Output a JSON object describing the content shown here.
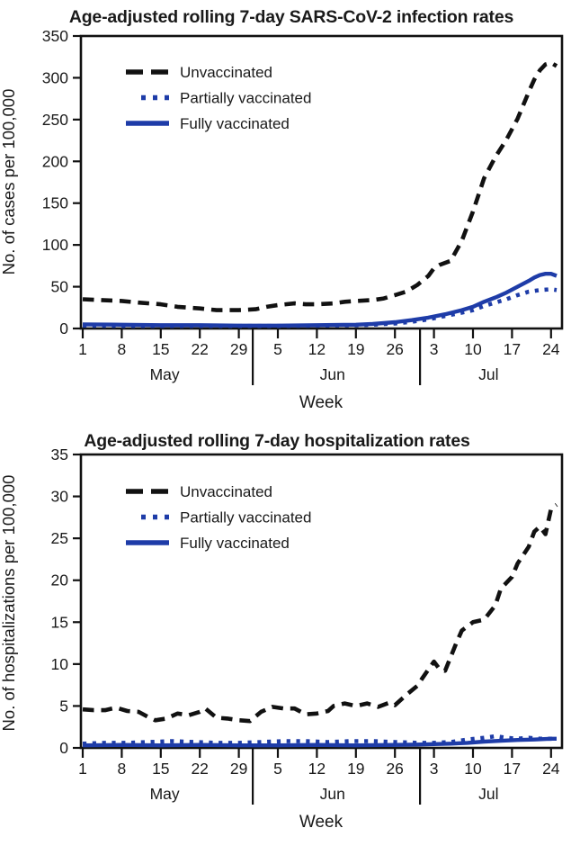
{
  "colors": {
    "background": "#ffffff",
    "axis": "#111111",
    "unvaccinated": "#111111",
    "vaccinated_blue": "#1e3ca8",
    "text": "#1a1a1a"
  },
  "chart_data": [
    {
      "type": "line",
      "title": "Age-adjusted rolling 7-day SARS-CoV-2 infection rates",
      "ylabel": "No. of cases per 100,000",
      "xlabel": "Week",
      "ylim": [
        0,
        350
      ],
      "yticks": [
        0,
        50,
        100,
        150,
        200,
        250,
        300,
        350
      ],
      "xticks": [
        {
          "day": 0,
          "label": "1"
        },
        {
          "day": 7,
          "label": "8"
        },
        {
          "day": 14,
          "label": "15"
        },
        {
          "day": 21,
          "label": "22"
        },
        {
          "day": 28,
          "label": "29"
        },
        {
          "day": 35,
          "label": "5"
        },
        {
          "day": 42,
          "label": "12"
        },
        {
          "day": 49,
          "label": "19"
        },
        {
          "day": 56,
          "label": "26"
        },
        {
          "day": 63,
          "label": "3"
        },
        {
          "day": 70,
          "label": "10"
        },
        {
          "day": 77,
          "label": "17"
        },
        {
          "day": 84,
          "label": "24"
        }
      ],
      "months": [
        {
          "label": "May",
          "day": 14.7
        },
        {
          "label": "Jun",
          "day": 44.8
        },
        {
          "label": "Jul",
          "day": 72.8
        }
      ],
      "month_dividers_day": [
        30.5,
        60.5
      ],
      "grid": false,
      "legend_position": "upper-left-inside",
      "series": [
        {
          "name": "Unvaccinated",
          "color": "#111111",
          "line": "dashed",
          "points": [
            [
              0,
              35
            ],
            [
              3,
              34
            ],
            [
              7,
              33
            ],
            [
              10,
              31
            ],
            [
              14,
              29
            ],
            [
              17,
              26
            ],
            [
              21,
              24
            ],
            [
              24,
              22
            ],
            [
              28,
              22
            ],
            [
              31,
              23
            ],
            [
              33,
              26
            ],
            [
              35,
              28
            ],
            [
              38,
              30
            ],
            [
              40,
              29
            ],
            [
              42,
              29
            ],
            [
              45,
              30
            ],
            [
              47,
              32
            ],
            [
              49,
              33
            ],
            [
              52,
              34
            ],
            [
              54,
              36
            ],
            [
              56,
              40
            ],
            [
              58,
              44
            ],
            [
              60,
              52
            ],
            [
              62,
              63
            ],
            [
              63,
              72
            ],
            [
              64,
              76
            ],
            [
              66,
              81
            ],
            [
              68,
              105
            ],
            [
              70,
              140
            ],
            [
              72,
              180
            ],
            [
              74,
              205
            ],
            [
              76,
              226
            ],
            [
              78,
              251
            ],
            [
              80,
              283
            ],
            [
              81,
              298
            ],
            [
              82,
              309
            ],
            [
              83,
              316
            ],
            [
              84,
              318
            ],
            [
              85,
              314
            ]
          ]
        },
        {
          "name": "Partially vaccinated",
          "color": "#1e3ca8",
          "line": "dotted",
          "points": [
            [
              0,
              3.5
            ],
            [
              7,
              3
            ],
            [
              14,
              3
            ],
            [
              21,
              3
            ],
            [
              28,
              3
            ],
            [
              35,
              3
            ],
            [
              42,
              3.5
            ],
            [
              49,
              4
            ],
            [
              52,
              4.5
            ],
            [
              56,
              6
            ],
            [
              59,
              8
            ],
            [
              62,
              11
            ],
            [
              65,
              15
            ],
            [
              68,
              19
            ],
            [
              70,
              22
            ],
            [
              72,
              27
            ],
            [
              74,
              31
            ],
            [
              76,
              35
            ],
            [
              78,
              40
            ],
            [
              80,
              44
            ],
            [
              82,
              46
            ],
            [
              84,
              47
            ],
            [
              85,
              46
            ]
          ]
        },
        {
          "name": "Fully vaccinated",
          "color": "#1e3ca8",
          "line": "solid",
          "points": [
            [
              0,
              5
            ],
            [
              7,
              4.5
            ],
            [
              14,
              4
            ],
            [
              21,
              4
            ],
            [
              28,
              3.5
            ],
            [
              35,
              3.5
            ],
            [
              42,
              4
            ],
            [
              49,
              4.5
            ],
            [
              52,
              5.5
            ],
            [
              56,
              7.5
            ],
            [
              59,
              10
            ],
            [
              62,
              13
            ],
            [
              65,
              17
            ],
            [
              68,
              22
            ],
            [
              70,
              26
            ],
            [
              72,
              32
            ],
            [
              74,
              37
            ],
            [
              76,
              43
            ],
            [
              78,
              50
            ],
            [
              80,
              57
            ],
            [
              81,
              61
            ],
            [
              82,
              64
            ],
            [
              83,
              65.5
            ],
            [
              84,
              65.5
            ],
            [
              85,
              63
            ]
          ]
        }
      ]
    },
    {
      "type": "line",
      "title": "Age-adjusted rolling 7-day hospitalization rates",
      "ylabel": "No. of hospitalizations per 100,000",
      "xlabel": "Week",
      "ylim": [
        0,
        35
      ],
      "yticks": [
        0,
        5,
        10,
        15,
        20,
        25,
        30,
        35
      ],
      "xticks": [
        {
          "day": 0,
          "label": "1"
        },
        {
          "day": 7,
          "label": "8"
        },
        {
          "day": 14,
          "label": "15"
        },
        {
          "day": 21,
          "label": "22"
        },
        {
          "day": 28,
          "label": "29"
        },
        {
          "day": 35,
          "label": "5"
        },
        {
          "day": 42,
          "label": "12"
        },
        {
          "day": 49,
          "label": "19"
        },
        {
          "day": 56,
          "label": "26"
        },
        {
          "day": 63,
          "label": "3"
        },
        {
          "day": 70,
          "label": "10"
        },
        {
          "day": 77,
          "label": "17"
        },
        {
          "day": 84,
          "label": "24"
        }
      ],
      "months": [
        {
          "label": "May",
          "day": 14.7
        },
        {
          "label": "Jun",
          "day": 44.8
        },
        {
          "label": "Jul",
          "day": 72.8
        }
      ],
      "month_dividers_day": [
        30.5,
        60.5
      ],
      "grid": false,
      "legend_position": "upper-left-inside",
      "series": [
        {
          "name": "Unvaccinated",
          "color": "#111111",
          "line": "dashed",
          "points": [
            [
              0,
              4.6
            ],
            [
              2,
              4.5
            ],
            [
              4,
              4.5
            ],
            [
              6,
              4.8
            ],
            [
              8,
              4.4
            ],
            [
              10,
              4.3
            ],
            [
              12,
              3.6
            ],
            [
              13,
              3.3
            ],
            [
              15,
              3.5
            ],
            [
              17,
              4.1
            ],
            [
              19,
              3.9
            ],
            [
              21,
              4.3
            ],
            [
              22,
              4.7
            ],
            [
              24,
              3.6
            ],
            [
              26,
              3.5
            ],
            [
              28,
              3.3
            ],
            [
              30,
              3.2
            ],
            [
              32,
              4.3
            ],
            [
              34,
              4.9
            ],
            [
              36,
              4.7
            ],
            [
              38,
              4.7
            ],
            [
              40,
              4.0
            ],
            [
              42,
              4.1
            ],
            [
              44,
              4.4
            ],
            [
              45,
              5.0
            ],
            [
              47,
              5.3
            ],
            [
              49,
              5.0
            ],
            [
              51,
              5.3
            ],
            [
              53,
              4.9
            ],
            [
              55,
              5.4
            ],
            [
              56,
              5.1
            ],
            [
              58,
              6.3
            ],
            [
              60,
              7.4
            ],
            [
              61,
              8.4
            ],
            [
              63,
              10.3
            ],
            [
              64,
              9.4
            ],
            [
              65,
              9.2
            ],
            [
              67,
              12.5
            ],
            [
              68,
              14.0
            ],
            [
              70,
              15.0
            ],
            [
              72,
              15.3
            ],
            [
              74,
              17.0
            ],
            [
              75,
              19.0
            ],
            [
              76,
              19.7
            ],
            [
              77,
              20.4
            ],
            [
              78,
              22.0
            ],
            [
              80,
              24.0
            ],
            [
              81,
              25.8
            ],
            [
              82,
              26.4
            ],
            [
              83,
              25.5
            ],
            [
              84,
              28.5
            ],
            [
              85,
              29.0
            ]
          ]
        },
        {
          "name": "Partially vaccinated",
          "color": "#1e3ca8",
          "line": "dotted",
          "points": [
            [
              0,
              0.5
            ],
            [
              4,
              0.6
            ],
            [
              8,
              0.6
            ],
            [
              12,
              0.7
            ],
            [
              16,
              0.8
            ],
            [
              20,
              0.7
            ],
            [
              24,
              0.6
            ],
            [
              28,
              0.6
            ],
            [
              32,
              0.7
            ],
            [
              36,
              0.8
            ],
            [
              40,
              0.8
            ],
            [
              44,
              0.7
            ],
            [
              48,
              0.8
            ],
            [
              52,
              0.8
            ],
            [
              56,
              0.7
            ],
            [
              60,
              0.6
            ],
            [
              63,
              0.6
            ],
            [
              66,
              0.7
            ],
            [
              69,
              1.0
            ],
            [
              72,
              1.2
            ],
            [
              74,
              1.4
            ],
            [
              76,
              1.2
            ],
            [
              78,
              1.1
            ],
            [
              80,
              1.2
            ],
            [
              82,
              1.1
            ],
            [
              84,
              1.1
            ],
            [
              85,
              1.0
            ]
          ]
        },
        {
          "name": "Fully vaccinated",
          "color": "#1e3ca8",
          "line": "solid",
          "points": [
            [
              0,
              0.3
            ],
            [
              7,
              0.35
            ],
            [
              14,
              0.3
            ],
            [
              21,
              0.35
            ],
            [
              28,
              0.3
            ],
            [
              35,
              0.3
            ],
            [
              42,
              0.35
            ],
            [
              49,
              0.3
            ],
            [
              56,
              0.35
            ],
            [
              60,
              0.4
            ],
            [
              63,
              0.45
            ],
            [
              66,
              0.5
            ],
            [
              69,
              0.6
            ],
            [
              72,
              0.75
            ],
            [
              75,
              0.85
            ],
            [
              78,
              0.95
            ],
            [
              81,
              1.0
            ],
            [
              84,
              1.1
            ],
            [
              85,
              1.1
            ]
          ]
        }
      ]
    }
  ]
}
